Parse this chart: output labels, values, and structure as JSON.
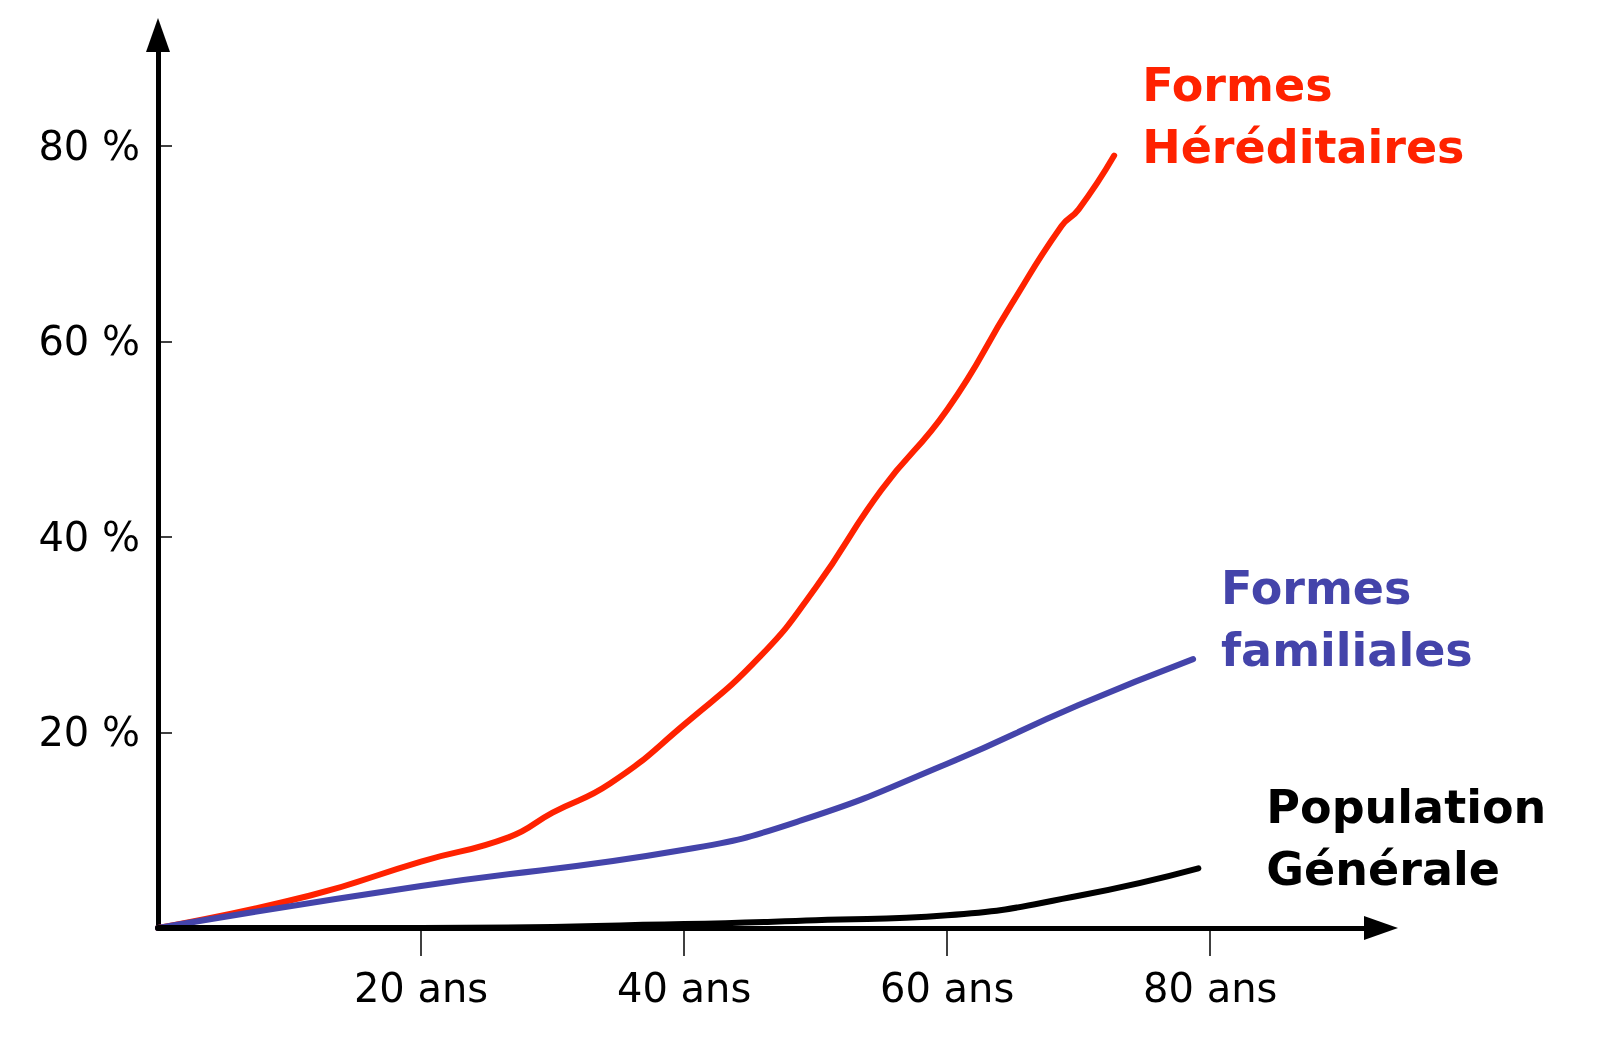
{
  "chart_data": {
    "type": "line",
    "xlim": [
      0,
      92
    ],
    "ylim": [
      0,
      90
    ],
    "xticks": [
      {
        "value": 20,
        "label": "20 ans"
      },
      {
        "value": 40,
        "label": "40 ans"
      },
      {
        "value": 60,
        "label": "60 ans"
      },
      {
        "value": 80,
        "label": "80 ans"
      }
    ],
    "yticks": [
      {
        "value": 20,
        "label": "20 %"
      },
      {
        "value": 40,
        "label": "40 %"
      },
      {
        "value": 60,
        "label": "60 %"
      },
      {
        "value": 80,
        "label": "80 %"
      }
    ],
    "grid": false,
    "legend": false,
    "marker": "none",
    "line_style": "solid",
    "series": [
      {
        "name": "Formes Héréditaires",
        "color": "#ff2200",
        "x": [
          0,
          11.5,
          20,
          26.7,
          30,
          34.4,
          40,
          45.8,
          50,
          55,
          60,
          64.9,
          68.7,
          70,
          72.7
        ],
        "values": [
          0,
          3.3,
          6.8,
          9.3,
          11.8,
          14.8,
          20.8,
          27.8,
          34.8,
          44.8,
          53,
          63.8,
          71.8,
          73.5,
          79
        ]
      },
      {
        "name": "Formes familiales",
        "color": "#4444aa",
        "x": [
          0,
          20,
          40,
          48.9,
          60,
          70,
          78.7
        ],
        "values": [
          0,
          4.3,
          8,
          11,
          16.8,
          22.8,
          27.5
        ]
      },
      {
        "name": "Population Générale",
        "color": "#000000",
        "x": [
          0,
          20,
          40,
          50,
          60,
          70,
          79.1
        ],
        "values": [
          0,
          0,
          0.4,
          0.8,
          1.3,
          3.3,
          6.1
        ]
      }
    ]
  }
}
